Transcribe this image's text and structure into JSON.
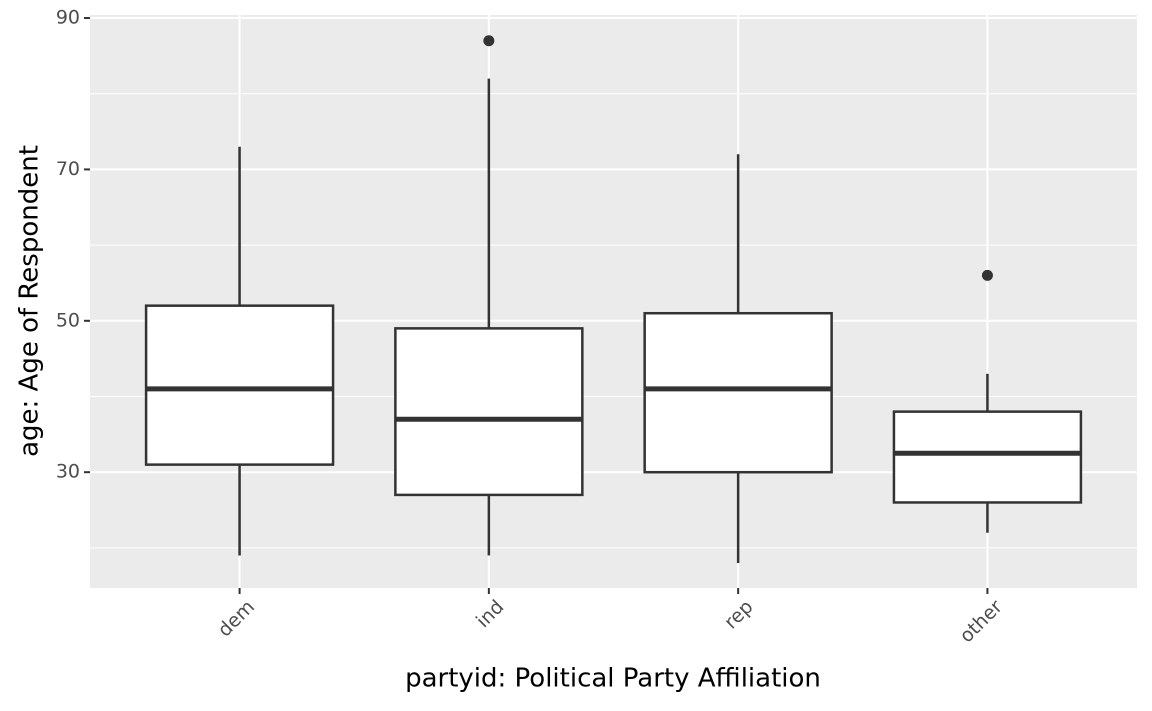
{
  "chart_data": {
    "type": "box",
    "x_label": "partyid: Political Party Affiliation",
    "y_label": "age: Age of Respondent",
    "categories": [
      "dem",
      "ind",
      "rep",
      "other"
    ],
    "min": [
      19,
      19,
      18,
      22
    ],
    "q1": [
      31,
      27,
      30,
      26
    ],
    "median": [
      41,
      37,
      41,
      32.5
    ],
    "q3": [
      52,
      49,
      51,
      38
    ],
    "max": [
      73,
      82,
      72,
      43
    ],
    "outliers": [
      [],
      [
        87
      ],
      [],
      [
        56
      ]
    ],
    "ylim": [
      14.7,
      90.4
    ],
    "yticks": [
      30,
      50,
      70,
      90
    ],
    "minor_yticks": [
      20,
      40,
      60,
      80
    ],
    "grid": true,
    "box_fill": "#ffffff",
    "box_stroke": "#333333",
    "panel_color": "#ebebeb"
  }
}
